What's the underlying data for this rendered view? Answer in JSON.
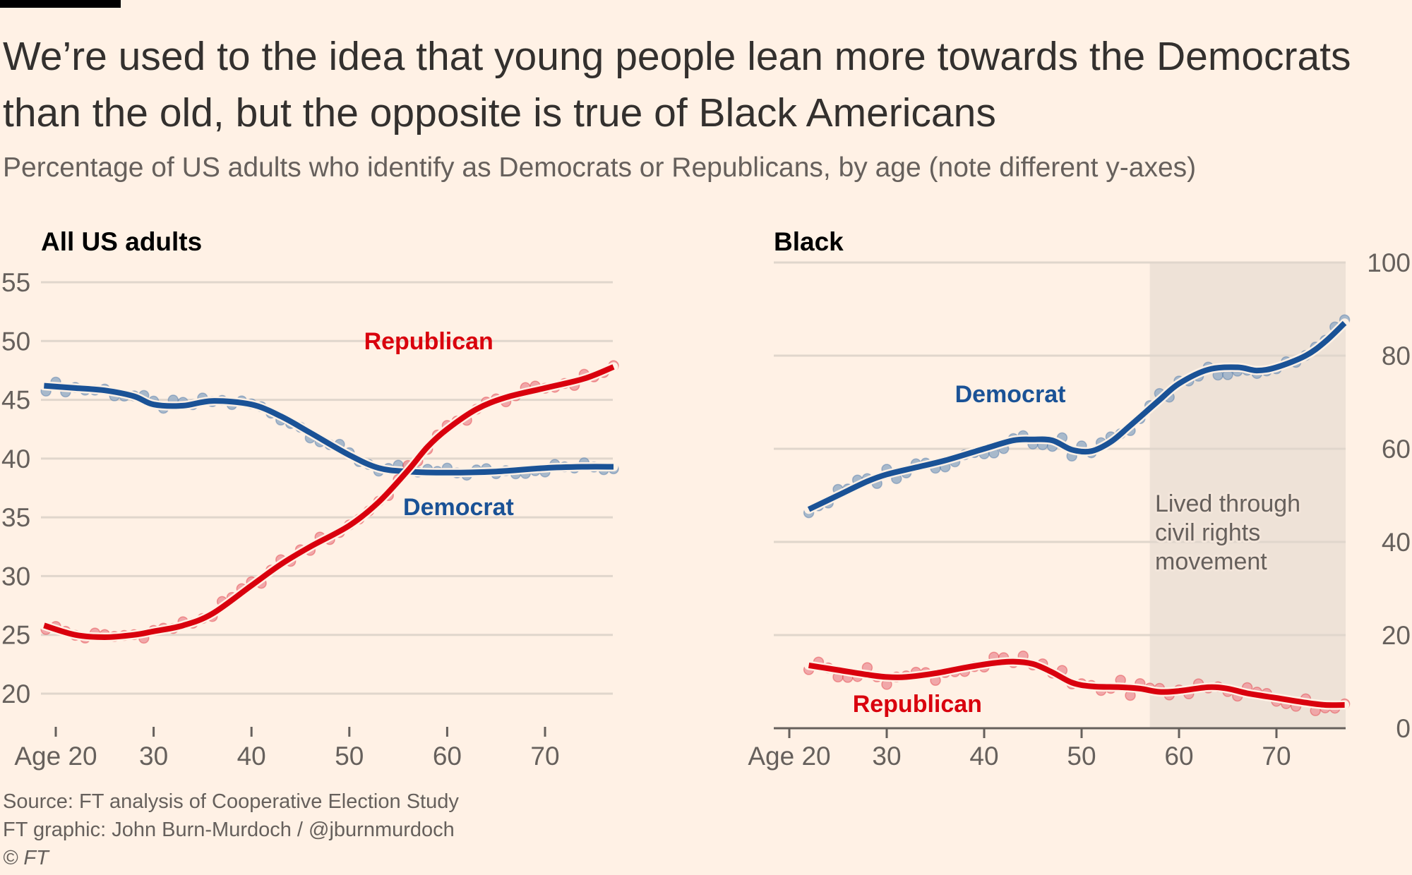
{
  "header": {
    "title": "We’re used to the idea that young people lean more towards the Democrats than the old, but the opposite is true of Black Americans",
    "subtitle": "Percentage of US adults who identify as Democrats or Republicans, by age (note different y-axes)"
  },
  "footer": {
    "source": "Source: FT analysis of Cooperative Election Study",
    "credit": "FT graphic: John Burn-Murdoch / @jburnmurdoch",
    "copyright": "© FT"
  },
  "colors": {
    "background": "#fff1e5",
    "democrat": "#1a5296",
    "democrat_points": "#9fb3c9",
    "republican": "#d9000d",
    "republican_points": "#f0a0a3",
    "grid": "#e0d6cc",
    "shade": "#eee2d7",
    "text": "#33302e",
    "muted": "#66605c"
  },
  "chart_data": [
    {
      "type": "line",
      "title": "All US adults",
      "xlabel": "Age",
      "ylabel": "",
      "x_ticks": [
        20,
        30,
        40,
        50,
        60,
        70
      ],
      "x_tick_labels": [
        "Age 20",
        "30",
        "40",
        "50",
        "60",
        "70"
      ],
      "xlim": [
        18.8,
        77
      ],
      "y_ticks": [
        20,
        25,
        30,
        35,
        40,
        45,
        50,
        55
      ],
      "ylim": [
        20,
        55
      ],
      "y_axis_side": "left",
      "grid": true,
      "series": [
        {
          "name": "Democrat",
          "label_age": 55.5,
          "label_value": 35.2,
          "x": [
            18.8,
            22,
            25,
            28,
            30,
            33,
            36,
            40,
            43,
            46,
            50,
            53,
            56,
            60,
            65,
            70,
            74,
            77
          ],
          "values": [
            46.2,
            46.0,
            45.8,
            45.3,
            44.6,
            44.5,
            44.9,
            44.6,
            43.6,
            42.2,
            40.3,
            39.2,
            38.9,
            38.8,
            38.9,
            39.2,
            39.3,
            39.3
          ]
        },
        {
          "name": "Republican",
          "label_age": 51.5,
          "label_value": 49.3,
          "x": [
            18.8,
            22,
            25,
            28,
            30,
            33,
            36,
            40,
            43,
            46,
            50,
            53,
            56,
            58,
            60,
            63,
            66,
            70,
            74,
            77
          ],
          "values": [
            25.8,
            25.0,
            24.8,
            25.0,
            25.3,
            25.8,
            26.8,
            29.2,
            31.0,
            32.5,
            34.3,
            36.3,
            39.0,
            41.0,
            42.5,
            44.2,
            45.2,
            46.0,
            46.8,
            47.8
          ]
        }
      ]
    },
    {
      "type": "line",
      "title": "Black",
      "xlabel": "Age",
      "ylabel": "",
      "x_ticks": [
        20,
        30,
        40,
        50,
        60,
        70
      ],
      "x_tick_labels": [
        "Age 20",
        "30",
        "40",
        "50",
        "60",
        "70"
      ],
      "xlim": [
        18.5,
        77
      ],
      "y_ticks": [
        0,
        20,
        40,
        60,
        80,
        100
      ],
      "ylim": [
        0,
        100
      ],
      "y_axis_side": "right",
      "grid": true,
      "annotation": {
        "text_lines": [
          "Lived through",
          "civil rights",
          "movement"
        ],
        "shaded_age_range": [
          57,
          77
        ]
      },
      "series": [
        {
          "name": "Democrat",
          "label_age": 37,
          "label_value": 70,
          "x": [
            22,
            25,
            28,
            30,
            33,
            36,
            40,
            43,
            45,
            47,
            49,
            51,
            53,
            55,
            58,
            60,
            63,
            66,
            68,
            70,
            73,
            75,
            77
          ],
          "values": [
            47.0,
            50.0,
            53.0,
            54.5,
            56.0,
            57.5,
            60.0,
            61.8,
            62.0,
            61.8,
            59.8,
            59.5,
            61.5,
            65.0,
            70.5,
            74.0,
            77.0,
            77.5,
            76.8,
            77.5,
            80.0,
            83.0,
            87.0
          ]
        },
        {
          "name": "Republican",
          "label_age": 26.5,
          "label_value": 3.5,
          "x": [
            22,
            25,
            28,
            30,
            32,
            35,
            38,
            41,
            43,
            45,
            47,
            49,
            51,
            54,
            56,
            58,
            60,
            63,
            65,
            67,
            70,
            73,
            75,
            77
          ],
          "values": [
            13.5,
            12.5,
            11.5,
            11.0,
            11.0,
            11.8,
            13.0,
            14.0,
            14.3,
            13.8,
            12.0,
            9.8,
            9.0,
            8.8,
            8.5,
            7.8,
            8.0,
            8.8,
            8.5,
            7.5,
            6.5,
            5.5,
            5.0,
            5.0
          ]
        }
      ]
    }
  ]
}
